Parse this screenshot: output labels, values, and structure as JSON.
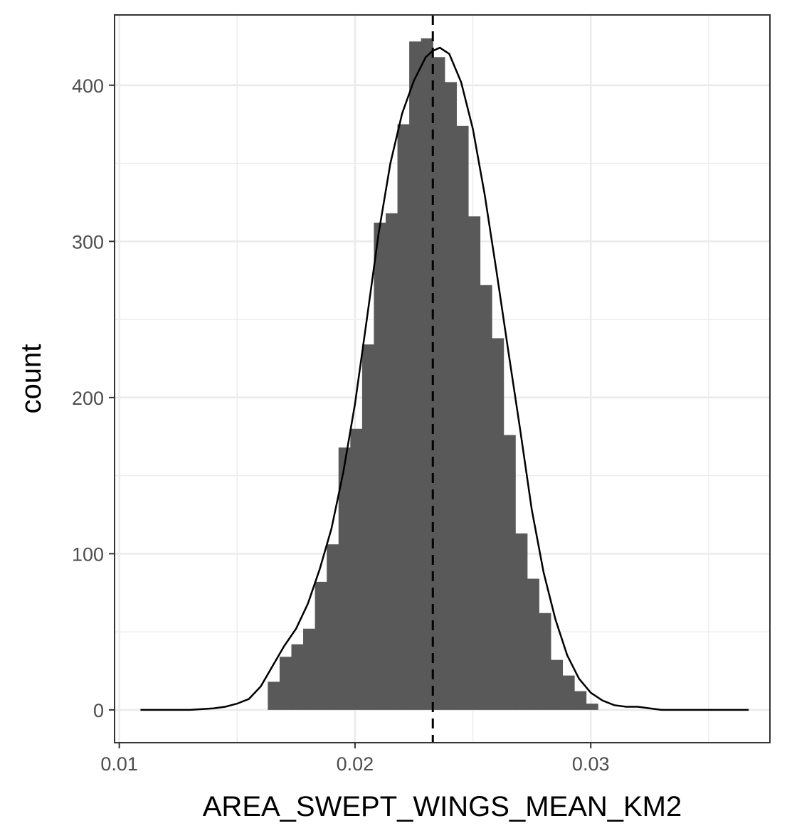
{
  "chart_data": {
    "type": "bar",
    "subtype": "histogram-with-density",
    "title": "",
    "xlabel": "AREA_SWEPT_WINGS_MEAN_KM2",
    "ylabel": "count",
    "xlim": [
      0.0098,
      0.0376
    ],
    "ylim": [
      -21,
      445
    ],
    "grid": true,
    "theme": "bw",
    "x_ticks": [
      {
        "value": 0.01,
        "label": "0.01"
      },
      {
        "value": 0.02,
        "label": "0.02"
      },
      {
        "value": 0.03,
        "label": "0.03"
      }
    ],
    "y_ticks": [
      {
        "value": 0,
        "label": "0"
      },
      {
        "value": 100,
        "label": "100"
      },
      {
        "value": 200,
        "label": "200"
      },
      {
        "value": 300,
        "label": "300"
      },
      {
        "value": 400,
        "label": "400"
      }
    ],
    "bin_width": 0.0005,
    "bin_start": 0.0163,
    "values": [
      18,
      34,
      42,
      52,
      82,
      106,
      168,
      180,
      234,
      312,
      318,
      375,
      428,
      430,
      418,
      402,
      374,
      316,
      272,
      238,
      176,
      113,
      84,
      62,
      32,
      22,
      12,
      4
    ],
    "mean_line": 0.0233,
    "bar_color": "#595959",
    "density_color": "#000000",
    "density": {
      "x": [
        0.0109,
        0.012,
        0.013,
        0.014,
        0.0145,
        0.015,
        0.0155,
        0.016,
        0.0165,
        0.017,
        0.0175,
        0.018,
        0.0185,
        0.019,
        0.0195,
        0.02,
        0.0205,
        0.021,
        0.0215,
        0.022,
        0.0225,
        0.023,
        0.0233,
        0.0236,
        0.024,
        0.0245,
        0.025,
        0.0255,
        0.026,
        0.0265,
        0.027,
        0.0275,
        0.028,
        0.0285,
        0.029,
        0.0295,
        0.03,
        0.0305,
        0.031,
        0.0315,
        0.032,
        0.0325,
        0.033,
        0.034,
        0.035,
        0.0358,
        0.0367
      ],
      "y": [
        0,
        0,
        0,
        1,
        2,
        4,
        7,
        15,
        28,
        41,
        52,
        68,
        90,
        116,
        152,
        196,
        250,
        305,
        350,
        382,
        403,
        418,
        422,
        424,
        420,
        402,
        372,
        330,
        281,
        230,
        180,
        128,
        88,
        58,
        35,
        20,
        11,
        6,
        3,
        2,
        2,
        1,
        0,
        0,
        0,
        0,
        0
      ]
    }
  }
}
